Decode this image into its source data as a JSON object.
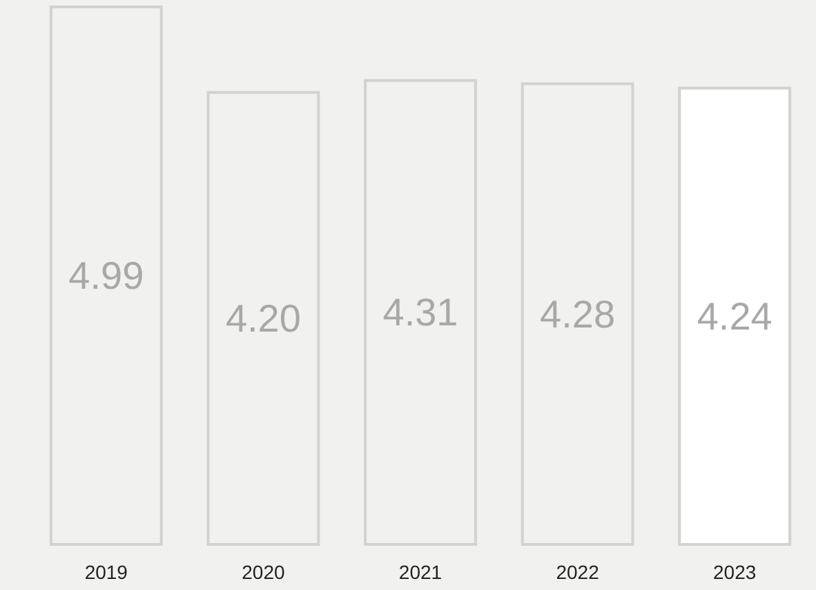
{
  "chart_data": {
    "type": "bar",
    "categories": [
      "2019",
      "2020",
      "2021",
      "2022",
      "2023"
    ],
    "values": [
      4.99,
      4.2,
      4.31,
      4.28,
      4.24
    ],
    "value_labels": [
      "4.99",
      "4.20",
      "4.31",
      "4.28",
      "4.24"
    ],
    "colors": [
      "#f1f1ef",
      "#f1f1ef",
      "#f1f1ef",
      "#f1f1ef",
      "#ffffff"
    ]
  }
}
